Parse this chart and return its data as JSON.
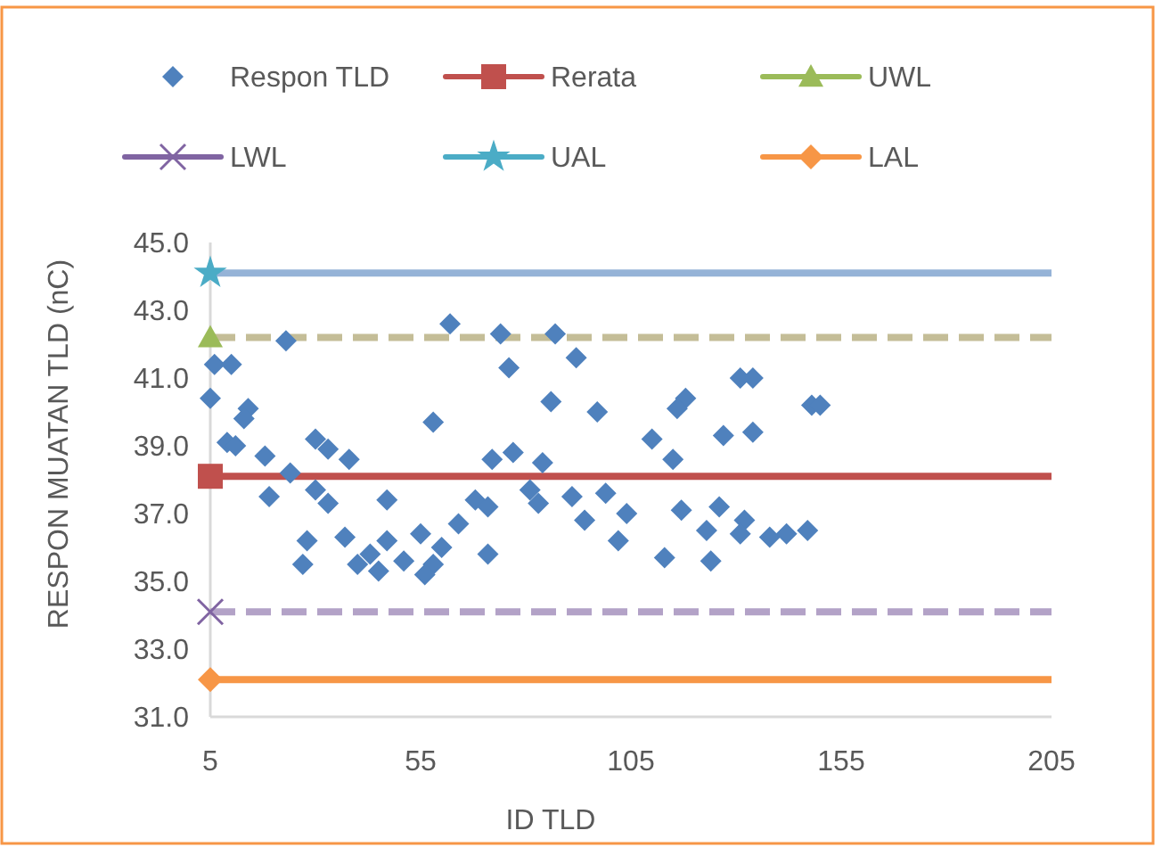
{
  "chart_data": {
    "type": "scatter",
    "xlabel": "ID TLD",
    "ylabel": "RESPON MUATAN TLD (nC)",
    "xlim": [
      5,
      205
    ],
    "xticks": [
      5,
      55,
      105,
      155,
      205
    ],
    "ylim": [
      31,
      45
    ],
    "yticks": [
      {
        "value": 31,
        "label": "31.0"
      },
      {
        "value": 33,
        "label": "33.0"
      },
      {
        "value": 35,
        "label": "35.0"
      },
      {
        "value": 37,
        "label": "37.0"
      },
      {
        "value": 39,
        "label": "39.0"
      },
      {
        "value": 41,
        "label": "41.0"
      },
      {
        "value": 43,
        "label": "43.0"
      },
      {
        "value": 45,
        "label": "45.0"
      }
    ],
    "grid": false,
    "legend": "top",
    "series": [
      {
        "name": "Respon TLD",
        "marker": "diamond",
        "color": "#4f81bd",
        "x": [
          6,
          10,
          5,
          14,
          13,
          9,
          11,
          18,
          19,
          24,
          23,
          30,
          33,
          38,
          30,
          33,
          28,
          27,
          37,
          47,
          40,
          43,
          47,
          45,
          51,
          55,
          60,
          58,
          56,
          64,
          68,
          71,
          71,
          58,
          62,
          72,
          74,
          76,
          87,
          92,
          86,
          97,
          118,
          116,
          110,
          115,
          127,
          134,
          134,
          131,
          148,
          150,
          77,
          84,
          81,
          83,
          91,
          94,
          99,
          104,
          102,
          117,
          126,
          123,
          132,
          131,
          138,
          142,
          147,
          113,
          124
        ],
        "values": [
          41.4,
          41.4,
          40.4,
          40.1,
          39.8,
          39.1,
          39.0,
          38.7,
          37.5,
          38.2,
          42.1,
          39.2,
          38.9,
          38.6,
          37.7,
          37.3,
          36.2,
          35.5,
          36.3,
          37.4,
          35.5,
          35.8,
          36.2,
          35.3,
          35.6,
          36.4,
          36.0,
          35.5,
          35.2,
          36.7,
          37.4,
          37.2,
          35.8,
          39.7,
          42.6,
          38.6,
          42.3,
          41.3,
          42.3,
          41.6,
          40.3,
          40.0,
          40.4,
          40.1,
          39.2,
          38.6,
          39.3,
          39.4,
          41.0,
          41.0,
          40.2,
          40.2,
          38.8,
          38.5,
          37.7,
          37.3,
          37.5,
          36.8,
          37.6,
          37.0,
          36.2,
          37.1,
          37.2,
          36.5,
          36.8,
          36.4,
          36.3,
          36.4,
          36.5,
          35.7,
          35.6
        ]
      },
      {
        "name": "Rerata",
        "type": "line",
        "marker": "square",
        "color": "#c0504d",
        "x": [
          5
        ],
        "values": [
          38.1
        ]
      },
      {
        "name": "UWL",
        "type": "line",
        "marker": "triangle",
        "color": "#9bbb59",
        "x": [
          5
        ],
        "values": [
          42.2
        ]
      },
      {
        "name": "LWL",
        "type": "line",
        "marker": "cross",
        "color": "#8064a2",
        "x": [
          5
        ],
        "values": [
          34.1
        ]
      },
      {
        "name": "UAL",
        "type": "line",
        "marker": "star",
        "color": "#4bacc6",
        "x": [
          5
        ],
        "values": [
          44.1
        ]
      },
      {
        "name": "LAL",
        "type": "line",
        "marker": "diamond",
        "color": "#f79646",
        "x": [
          5
        ],
        "values": [
          32.1
        ]
      }
    ],
    "ref_lines": [
      {
        "axis": "y",
        "value": 44.1,
        "color": "#95b3d7",
        "line_style": "solid"
      },
      {
        "axis": "y",
        "value": 42.2,
        "color": "#c4bd97",
        "line_style": "dashed"
      },
      {
        "axis": "y",
        "value": 38.1,
        "color": "#c0504d",
        "line_style": "solid"
      },
      {
        "axis": "y",
        "value": 34.1,
        "color": "#b3a2c7",
        "line_style": "dashed"
      },
      {
        "axis": "y",
        "value": 32.1,
        "color": "#f79646",
        "line_style": "solid"
      }
    ]
  }
}
